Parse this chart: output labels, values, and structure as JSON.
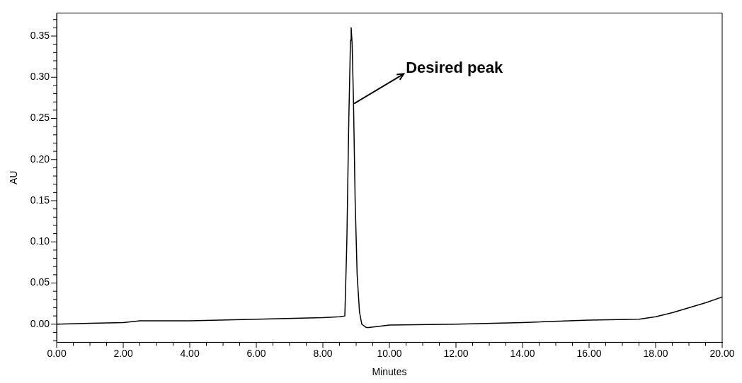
{
  "chart_data": {
    "type": "line",
    "xlabel": "Minutes",
    "ylabel": "AU",
    "series": [
      {
        "color": "#000000",
        "x": [
          0,
          1,
          2,
          2.5,
          4,
          6,
          8,
          8.5,
          8.66,
          8.72,
          8.78,
          8.83,
          8.85,
          8.88,
          8.92,
          8.97,
          9.03,
          9.1,
          9.17,
          9.3,
          9.38,
          9.6,
          10,
          12,
          14,
          16,
          17.5,
          18,
          18.5,
          19,
          19.5,
          20
        ],
        "values": [
          0,
          0.001,
          0.002,
          0.004,
          0.004,
          0.006,
          0.008,
          0.009,
          0.01,
          0.1,
          0.25,
          0.345,
          0.36,
          0.34,
          0.27,
          0.15,
          0.06,
          0.015,
          0,
          -0.004,
          -0.004,
          -0.003,
          -0.001,
          0,
          0.002,
          0.005,
          0.006,
          0.009,
          0.014,
          0.02,
          0.026,
          0.033
        ]
      }
    ],
    "xlim": [
      0,
      20
    ],
    "xticks": [
      {
        "value": 0,
        "label": "0.00"
      },
      {
        "value": 0.5,
        "label": null
      },
      {
        "value": 1,
        "label": null
      },
      {
        "value": 1.5,
        "label": null
      },
      {
        "value": 2,
        "label": "2.00"
      },
      {
        "value": 2.5,
        "label": null
      },
      {
        "value": 3,
        "label": null
      },
      {
        "value": 3.5,
        "label": null
      },
      {
        "value": 4,
        "label": "4.00"
      },
      {
        "value": 4.5,
        "label": null
      },
      {
        "value": 5,
        "label": null
      },
      {
        "value": 5.5,
        "label": null
      },
      {
        "value": 6,
        "label": "6.00"
      },
      {
        "value": 6.5,
        "label": null
      },
      {
        "value": 7,
        "label": null
      },
      {
        "value": 7.5,
        "label": null
      },
      {
        "value": 8,
        "label": "8.00"
      },
      {
        "value": 8.5,
        "label": null
      },
      {
        "value": 9,
        "label": null
      },
      {
        "value": 9.5,
        "label": null
      },
      {
        "value": 10,
        "label": "10.00"
      },
      {
        "value": 10.5,
        "label": null
      },
      {
        "value": 11,
        "label": null
      },
      {
        "value": 11.5,
        "label": null
      },
      {
        "value": 12,
        "label": "12.00"
      },
      {
        "value": 12.5,
        "label": null
      },
      {
        "value": 13,
        "label": null
      },
      {
        "value": 13.5,
        "label": null
      },
      {
        "value": 14,
        "label": "14.00"
      },
      {
        "value": 14.5,
        "label": null
      },
      {
        "value": 15,
        "label": null
      },
      {
        "value": 15.5,
        "label": null
      },
      {
        "value": 16,
        "label": "16.00"
      },
      {
        "value": 16.5,
        "label": null
      },
      {
        "value": 17,
        "label": null
      },
      {
        "value": 17.5,
        "label": null
      },
      {
        "value": 18,
        "label": "18.00"
      },
      {
        "value": 18.5,
        "label": null
      },
      {
        "value": 19,
        "label": null
      },
      {
        "value": 19.5,
        "label": null
      },
      {
        "value": 20,
        "label": "20.00"
      }
    ],
    "ylim": [
      -0.022,
      0.378
    ],
    "yticks": [
      {
        "value": -0.02,
        "label": null
      },
      {
        "value": -0.01,
        "label": null
      },
      {
        "value": 0,
        "label": "0.00"
      },
      {
        "value": 0.01,
        "label": null
      },
      {
        "value": 0.02,
        "label": null
      },
      {
        "value": 0.03,
        "label": null
      },
      {
        "value": 0.04,
        "label": null
      },
      {
        "value": 0.05,
        "label": "0.05"
      },
      {
        "value": 0.06,
        "label": null
      },
      {
        "value": 0.07,
        "label": null
      },
      {
        "value": 0.08,
        "label": null
      },
      {
        "value": 0.09,
        "label": null
      },
      {
        "value": 0.1,
        "label": "0.10"
      },
      {
        "value": 0.11,
        "label": null
      },
      {
        "value": 0.12,
        "label": null
      },
      {
        "value": 0.13,
        "label": null
      },
      {
        "value": 0.14,
        "label": null
      },
      {
        "value": 0.15,
        "label": "0.15"
      },
      {
        "value": 0.16,
        "label": null
      },
      {
        "value": 0.17,
        "label": null
      },
      {
        "value": 0.18,
        "label": null
      },
      {
        "value": 0.19,
        "label": null
      },
      {
        "value": 0.2,
        "label": "0.20"
      },
      {
        "value": 0.21,
        "label": null
      },
      {
        "value": 0.22,
        "label": null
      },
      {
        "value": 0.23,
        "label": null
      },
      {
        "value": 0.24,
        "label": null
      },
      {
        "value": 0.25,
        "label": "0.25"
      },
      {
        "value": 0.26,
        "label": null
      },
      {
        "value": 0.27,
        "label": null
      },
      {
        "value": 0.28,
        "label": null
      },
      {
        "value": 0.29,
        "label": null
      },
      {
        "value": 0.3,
        "label": "0.30"
      },
      {
        "value": 0.31,
        "label": null
      },
      {
        "value": 0.32,
        "label": null
      },
      {
        "value": 0.33,
        "label": null
      },
      {
        "value": 0.34,
        "label": null
      },
      {
        "value": 0.35,
        "label": "0.35"
      },
      {
        "value": 0.36,
        "label": null
      },
      {
        "value": 0.37,
        "label": null
      }
    ],
    "grid": false,
    "legend": false,
    "marker": "none",
    "line_style": "solid",
    "annotations": [
      {
        "text": "Desired peak",
        "x": 8.94,
        "y": 0.268
      }
    ]
  }
}
